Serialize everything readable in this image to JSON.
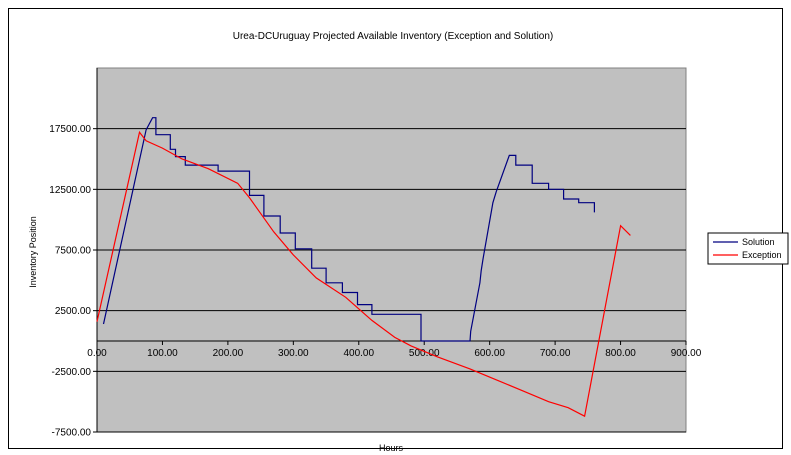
{
  "chart_data": {
    "type": "line",
    "title": "Urea-DCUruguay Projected Available Inventory (Exception and Solution)",
    "xlabel": "Hours",
    "ylabel": "Inventory Position",
    "xlim": [
      0,
      900
    ],
    "ylim": [
      -7500,
      22500
    ],
    "x_ticks": [
      0,
      100,
      200,
      300,
      400,
      500,
      600,
      700,
      800,
      900
    ],
    "y_ticks": [
      17500,
      12500,
      7500,
      2500,
      -2500,
      -7500
    ],
    "x_tick_labels": [
      "0.00",
      "100.00",
      "200.00",
      "300.00",
      "400.00",
      "500.00",
      "600.00",
      "700.00",
      "800.00",
      "900.00"
    ],
    "y_tick_labels": [
      "17500.00",
      "12500.00",
      "7500.00",
      "2500.00",
      "-2500.00",
      "-7500.00"
    ],
    "plot_background": "#c0c0c0",
    "grid": "horizontal",
    "legend_position": "right",
    "series": [
      {
        "name": "Solution",
        "color": "#000080",
        "points": [
          [
            10,
            1400
          ],
          [
            75,
            17400
          ],
          [
            85,
            18400
          ],
          [
            90,
            18400
          ],
          [
            90,
            17000
          ],
          [
            112,
            17000
          ],
          [
            112,
            15800
          ],
          [
            120,
            15800
          ],
          [
            120,
            15200
          ],
          [
            135,
            15200
          ],
          [
            135,
            14500
          ],
          [
            185,
            14500
          ],
          [
            185,
            14000
          ],
          [
            233,
            14000
          ],
          [
            233,
            12000
          ],
          [
            255,
            12000
          ],
          [
            255,
            10300
          ],
          [
            280,
            10300
          ],
          [
            280,
            8900
          ],
          [
            303,
            8900
          ],
          [
            303,
            7600
          ],
          [
            328,
            7600
          ],
          [
            328,
            6000
          ],
          [
            350,
            6000
          ],
          [
            350,
            4800
          ],
          [
            375,
            4800
          ],
          [
            375,
            4000
          ],
          [
            398,
            4000
          ],
          [
            398,
            3000
          ],
          [
            420,
            3000
          ],
          [
            420,
            2200
          ],
          [
            495,
            2200
          ],
          [
            495,
            800
          ],
          [
            495,
            0
          ],
          [
            570,
            0
          ],
          [
            571,
            800
          ],
          [
            585,
            4800
          ],
          [
            587,
            5800
          ],
          [
            590,
            6800
          ],
          [
            605,
            11400
          ],
          [
            610,
            12300
          ],
          [
            630,
            15300
          ],
          [
            640,
            15300
          ],
          [
            640,
            14500
          ],
          [
            665,
            14500
          ],
          [
            665,
            13000
          ],
          [
            690,
            13000
          ],
          [
            690,
            12500
          ],
          [
            713,
            12500
          ],
          [
            713,
            11700
          ],
          [
            736,
            11700
          ],
          [
            736,
            11400
          ],
          [
            760,
            11400
          ],
          [
            760,
            10600
          ]
        ]
      },
      {
        "name": "Exception",
        "color": "#ff0000",
        "points": [
          [
            0,
            1600
          ],
          [
            65,
            17200
          ],
          [
            75,
            16500
          ],
          [
            100,
            15900
          ],
          [
            130,
            15000
          ],
          [
            170,
            14200
          ],
          [
            215,
            13000
          ],
          [
            233,
            11800
          ],
          [
            270,
            9000
          ],
          [
            300,
            7100
          ],
          [
            335,
            5200
          ],
          [
            380,
            3600
          ],
          [
            420,
            1700
          ],
          [
            455,
            300
          ],
          [
            480,
            -400
          ],
          [
            520,
            -1300
          ],
          [
            570,
            -2300
          ],
          [
            610,
            -3200
          ],
          [
            650,
            -4100
          ],
          [
            690,
            -5000
          ],
          [
            720,
            -5500
          ],
          [
            745,
            -6200
          ],
          [
            800,
            9500
          ],
          [
            815,
            8700
          ]
        ]
      }
    ]
  }
}
